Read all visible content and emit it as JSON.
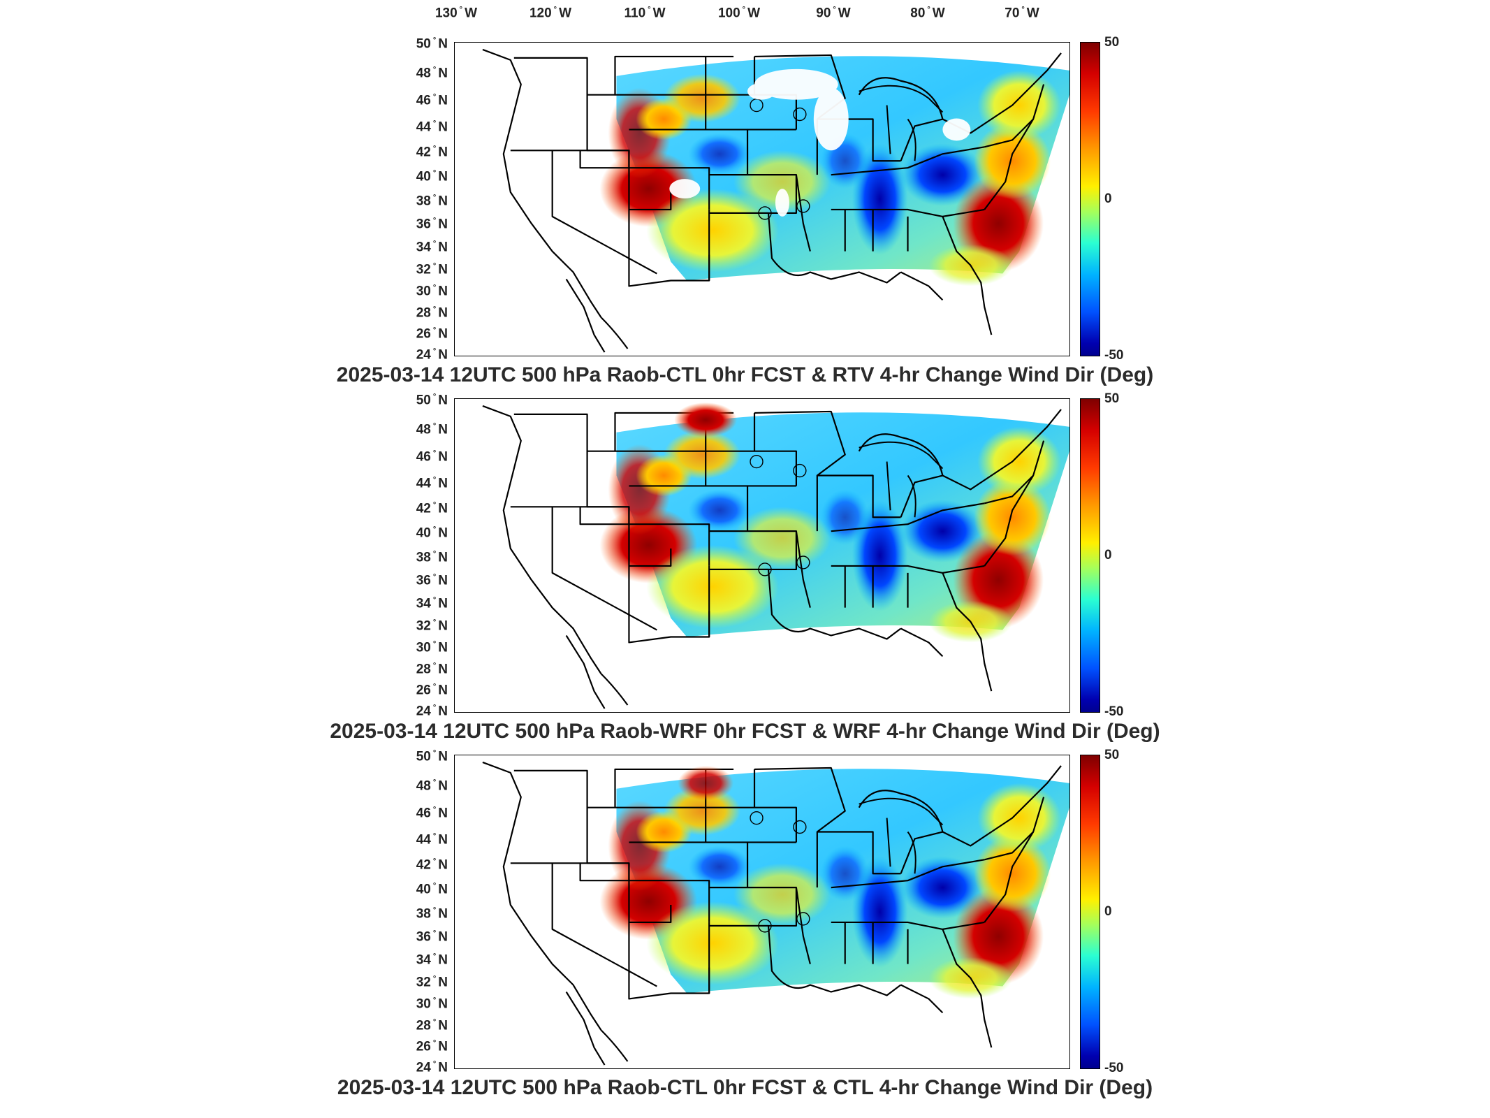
{
  "longitude_labels": [
    {
      "deg": "130",
      "dir": "W"
    },
    {
      "deg": "120",
      "dir": "W"
    },
    {
      "deg": "110",
      "dir": "W"
    },
    {
      "deg": "100",
      "dir": "W"
    },
    {
      "deg": "90",
      "dir": "W"
    },
    {
      "deg": "80",
      "dir": "W"
    },
    {
      "deg": "70",
      "dir": "W"
    }
  ],
  "latitude_labels": [
    {
      "deg": "50",
      "dir": "N"
    },
    {
      "deg": "48",
      "dir": "N"
    },
    {
      "deg": "46",
      "dir": "N"
    },
    {
      "deg": "44",
      "dir": "N"
    },
    {
      "deg": "42",
      "dir": "N"
    },
    {
      "deg": "40",
      "dir": "N"
    },
    {
      "deg": "38",
      "dir": "N"
    },
    {
      "deg": "36",
      "dir": "N"
    },
    {
      "deg": "34",
      "dir": "N"
    },
    {
      "deg": "32",
      "dir": "N"
    },
    {
      "deg": "30",
      "dir": "N"
    },
    {
      "deg": "28",
      "dir": "N"
    },
    {
      "deg": "26",
      "dir": "N"
    },
    {
      "deg": "24",
      "dir": "N"
    }
  ],
  "colorbar": {
    "max": "50",
    "mid": "0",
    "min": "-50",
    "colormap": "jet"
  },
  "panels": [
    {
      "title": "2025-03-14 12UTC 500 hPa Raob-CTL 0hr FCST & RTV 4-hr Change Wind Dir (Deg)"
    },
    {
      "title": "2025-03-14 12UTC 500 hPa Raob-WRF 0hr FCST & WRF 4-hr Change Wind Dir (Deg)"
    },
    {
      "title": "2025-03-14 12UTC 500 hPa Raob-CTL 0hr FCST & CTL 4-hr Change Wind Dir (Deg)"
    }
  ]
}
